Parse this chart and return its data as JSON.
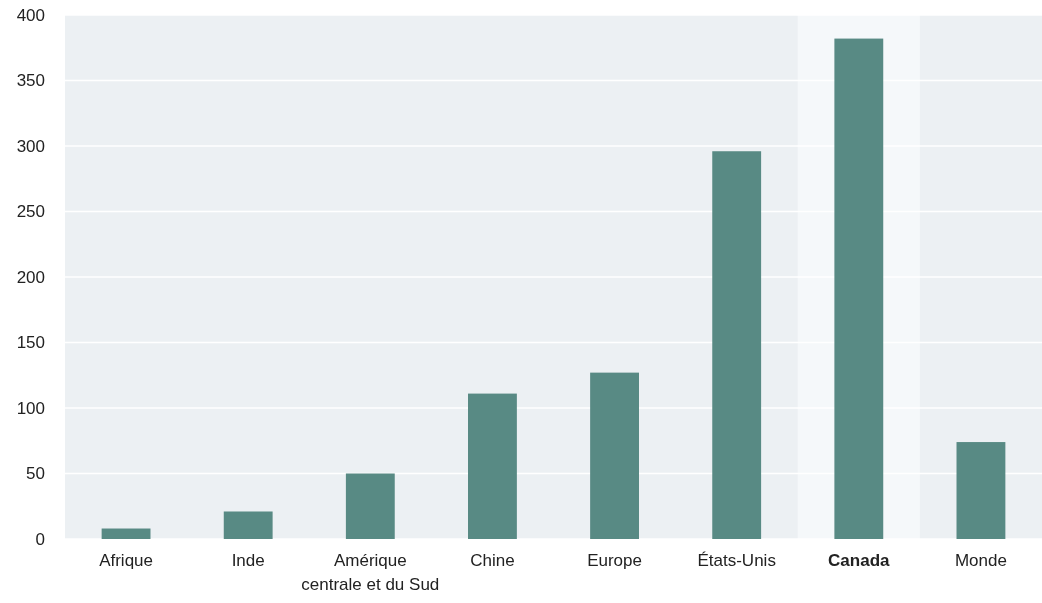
{
  "chart_data": {
    "type": "bar",
    "categories": [
      "Afrique",
      "Inde",
      "Amérique centrale et du Sud",
      "Chine",
      "Europe",
      "États-Unis",
      "Canada",
      "Monde"
    ],
    "values": [
      8,
      21,
      50,
      111,
      127,
      296,
      382,
      74
    ],
    "color": "#588a84",
    "ylim": [
      0,
      400
    ],
    "yticks": [
      0,
      50,
      100,
      150,
      200,
      250,
      300,
      350,
      400
    ],
    "grid": "y",
    "bands": [
      {
        "axis": "x",
        "from": "Canada",
        "to": "Canada",
        "color": "#f5f8fa"
      }
    ]
  }
}
